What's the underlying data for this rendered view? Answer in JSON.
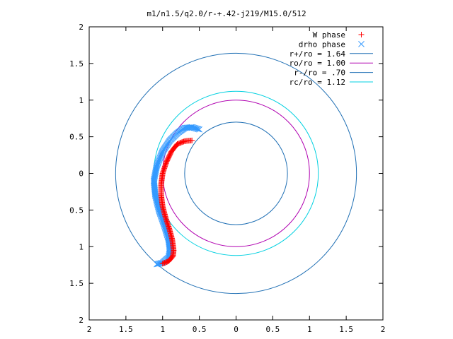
{
  "chart_data": {
    "type": "scatter",
    "title": "m1/n1.5/q2.0/r-+.42-j219/M15.0/512",
    "xlim": [
      -2,
      2
    ],
    "ylim": [
      -2,
      2
    ],
    "x_ticks": [
      -2,
      -1.5,
      -1,
      -0.5,
      0,
      0.5,
      1,
      1.5,
      2
    ],
    "y_ticks": [
      -2,
      -1.5,
      -1,
      -0.5,
      0,
      0.5,
      1,
      1.5,
      2
    ],
    "x_tick_labels": [
      "2",
      "1.5",
      "1",
      "0.5",
      "0",
      "0.5",
      "1",
      "1.5",
      "2"
    ],
    "y_tick_labels": [
      "2",
      "1.5",
      "1",
      "0.5",
      "0",
      "0.5",
      "1",
      "1.5",
      "2"
    ],
    "grid": false,
    "legend_placement": "top-right",
    "legend": [
      {
        "label": "W phase",
        "marker": "+",
        "color": "#ff0000"
      },
      {
        "label": "drho phase",
        "marker": "x",
        "color": "#3399ff"
      },
      {
        "label": "r+/ro = 1.64",
        "marker": "line",
        "color": "#1f6fb4"
      },
      {
        "label": "ro/ro = 1.00",
        "marker": "line",
        "color": "#b000b0"
      },
      {
        "label": "r-/ro = .70",
        "marker": "line",
        "color": "#1f6fb4"
      },
      {
        "label": "rc/ro = 1.12",
        "marker": "line",
        "color": "#00d0e0"
      }
    ],
    "circles": [
      {
        "name": "r+/ro",
        "radius": 1.64,
        "color": "#1f6fb4"
      },
      {
        "name": "ro/ro",
        "radius": 1.0,
        "color": "#b000b0"
      },
      {
        "name": "r-/ro",
        "radius": 0.7,
        "color": "#1f6fb4"
      },
      {
        "name": "rc/ro",
        "radius": 1.12,
        "color": "#00d0e0"
      }
    ],
    "series": [
      {
        "name": "W phase",
        "marker": "+",
        "color": "#ff0000",
        "points": [
          [
            -0.6,
            0.45
          ],
          [
            -0.7,
            0.44
          ],
          [
            -0.8,
            0.4
          ],
          [
            -0.88,
            0.3
          ],
          [
            -0.95,
            0.15
          ],
          [
            -1.0,
            0.0
          ],
          [
            -1.02,
            -0.15
          ],
          [
            -1.02,
            -0.3
          ],
          [
            -1.0,
            -0.45
          ],
          [
            -0.96,
            -0.6
          ],
          [
            -0.91,
            -0.75
          ],
          [
            -0.87,
            -0.9
          ],
          [
            -0.85,
            -1.05
          ],
          [
            -0.86,
            -1.13
          ],
          [
            -0.92,
            -1.2
          ],
          [
            -1.0,
            -1.23
          ]
        ]
      },
      {
        "name": "drho phase",
        "marker": "x",
        "color": "#3399ff",
        "points": [
          [
            -0.5,
            0.6
          ],
          [
            -0.6,
            0.63
          ],
          [
            -0.7,
            0.62
          ],
          [
            -0.8,
            0.55
          ],
          [
            -0.9,
            0.45
          ],
          [
            -1.0,
            0.3
          ],
          [
            -1.08,
            0.1
          ],
          [
            -1.12,
            -0.1
          ],
          [
            -1.1,
            -0.3
          ],
          [
            -1.05,
            -0.5
          ],
          [
            -0.98,
            -0.7
          ],
          [
            -0.92,
            -0.9
          ],
          [
            -0.9,
            -1.05
          ],
          [
            -0.92,
            -1.15
          ],
          [
            -1.0,
            -1.22
          ],
          [
            -1.08,
            -1.24
          ]
        ]
      }
    ]
  }
}
